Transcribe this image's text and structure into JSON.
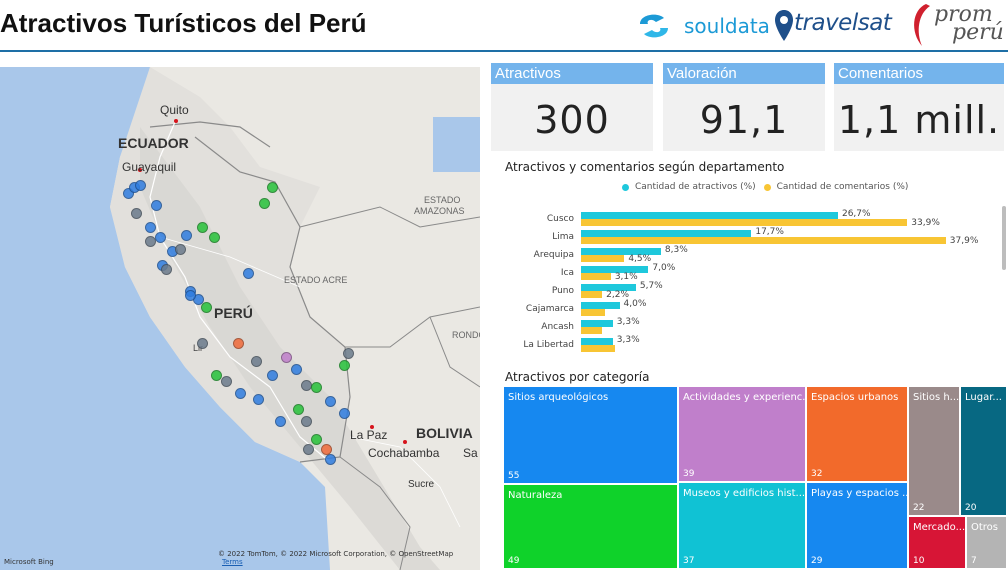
{
  "header": {
    "title": "Atractivos Turísticos del Perú"
  },
  "logos": {
    "souldata": "souldata",
    "travelsat": "travelsat",
    "promperu_line1": "prom",
    "promperu_line2": "perú"
  },
  "map": {
    "labels": {
      "quito": "Quito",
      "ecuador": "ECUADOR",
      "guayaquil": "Guayaquil",
      "estado_amazonas_1": "ESTADO",
      "estado_amazonas_2": "AMAZONAS",
      "estado_acre": "ESTADO ACRE",
      "peru": "PERÚ",
      "rondonia": "RONDO",
      "la_paz": "La Paz",
      "bolivia": "BOLIVIA",
      "cochabamba": "Cochabamba",
      "sa": "Sa",
      "sucre": "Sucre",
      "lima": "Lir"
    },
    "attribution": "© 2022 TomTom, © 2022 Microsoft Corporation, © OpenStreetMap",
    "terms": "Terms",
    "bing": "Microsoft Bing"
  },
  "kpis": [
    {
      "label": "Atractivos",
      "value": "300"
    },
    {
      "label": "Valoración",
      "value": "91,1"
    },
    {
      "label": "Comentarios",
      "value": "1,1 mill."
    }
  ],
  "bar_chart": {
    "title": "Atractivos y comentarios según departamento",
    "legend": [
      "Cantidad de atractivos (%)",
      "Cantidad de comentarios (%)"
    ],
    "colors": {
      "attractions": "#1ec8dc",
      "comments": "#f8c534"
    }
  },
  "treemap": {
    "title": "Atractivos por categoría"
  },
  "chart_data": [
    {
      "type": "bar",
      "title": "Atractivos y comentarios según departamento",
      "categories": [
        "Cusco",
        "Lima",
        "Arequipa",
        "Ica",
        "Puno",
        "Cajamarca",
        "Ancash",
        "La Libertad"
      ],
      "series": [
        {
          "name": "Cantidad de atractivos (%)",
          "values": [
            26.7,
            17.7,
            8.3,
            7.0,
            5.7,
            4.0,
            3.3,
            3.3
          ],
          "labels": [
            "26,7%",
            "17,7%",
            "8,3%",
            "7,0%",
            "5,7%",
            "4,0%",
            "3,3%",
            "3,3%"
          ]
        },
        {
          "name": "Cantidad de comentarios (%)",
          "values": [
            33.9,
            37.9,
            4.5,
            3.1,
            2.2,
            2.5,
            2.2,
            3.5
          ],
          "labels": [
            "33,9%",
            "37,9%",
            "4,5%",
            "3,1%",
            "2,2%",
            "",
            "",
            ""
          ]
        }
      ]
    },
    {
      "type": "treemap",
      "title": "Atractivos por categoría",
      "items": [
        {
          "label": "Sitios arqueológicos",
          "value": 55,
          "color": "#1688f0"
        },
        {
          "label": "Naturaleza",
          "value": 49,
          "color": "#0fd22a"
        },
        {
          "label": "Actividades y experienc...",
          "value": 39,
          "color": "#c07fcb"
        },
        {
          "label": "Museos y edificios hist...",
          "value": 37,
          "color": "#10c2d4"
        },
        {
          "label": "Espacios urbanos",
          "value": 32,
          "color": "#f26a2b"
        },
        {
          "label": "Playas y espacios ...",
          "value": 29,
          "color": "#1688f0"
        },
        {
          "label": "Sitios h...",
          "value": 22,
          "color": "#9a8a8a"
        },
        {
          "label": "Lugar...",
          "value": 20,
          "color": "#076882"
        },
        {
          "label": "Mercado...",
          "value": 10,
          "color": "#d71536"
        },
        {
          "label": "Otros",
          "value": 7,
          "color": "#b4b4b4"
        }
      ]
    }
  ]
}
